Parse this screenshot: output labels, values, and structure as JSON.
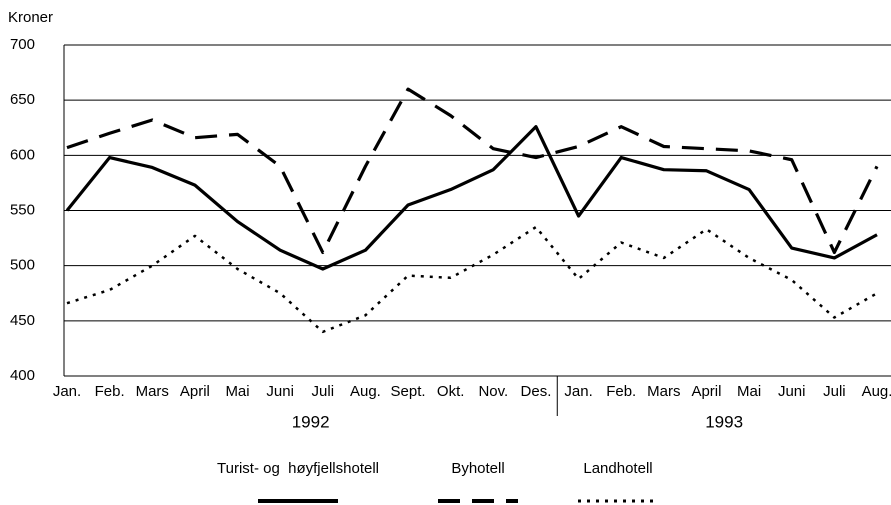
{
  "chart_data": {
    "type": "line",
    "y_label": "Kroner",
    "categories": [
      "Jan.",
      "Feb.",
      "Mars",
      "April",
      "Mai",
      "Juni",
      "Juli",
      "Aug.",
      "Sept.",
      "Okt.",
      "Nov.",
      "Des.",
      "Jan.",
      "Feb.",
      "Mars",
      "April",
      "Mai",
      "Juni",
      "Juli",
      "Aug."
    ],
    "years": [
      "1992",
      "1993"
    ],
    "series": [
      {
        "name": "Turist- og  høyfjellshotell",
        "color": "#000000",
        "style": "solid",
        "values": [
          550,
          598,
          589,
          573,
          540,
          514,
          497,
          514,
          555,
          569,
          587,
          626,
          545,
          598,
          587,
          586,
          569,
          516,
          507,
          528
        ]
      },
      {
        "name": "Byhotell",
        "color": "#000000",
        "style": "dashed",
        "values": [
          607,
          620,
          632,
          616,
          619,
          590,
          512,
          590,
          660,
          636,
          606,
          598,
          608,
          626,
          608,
          606,
          604,
          596,
          512,
          590
        ]
      },
      {
        "name": "Landhotell",
        "color": "#000000",
        "style": "dotted",
        "values": [
          466,
          478,
          500,
          527,
          497,
          475,
          440,
          455,
          491,
          489,
          510,
          535,
          488,
          521,
          507,
          533,
          507,
          487,
          453,
          475
        ]
      }
    ],
    "ylim": [
      400,
      700
    ],
    "yticks": [
      400,
      450,
      500,
      550,
      600,
      650,
      700
    ],
    "grid": true
  }
}
